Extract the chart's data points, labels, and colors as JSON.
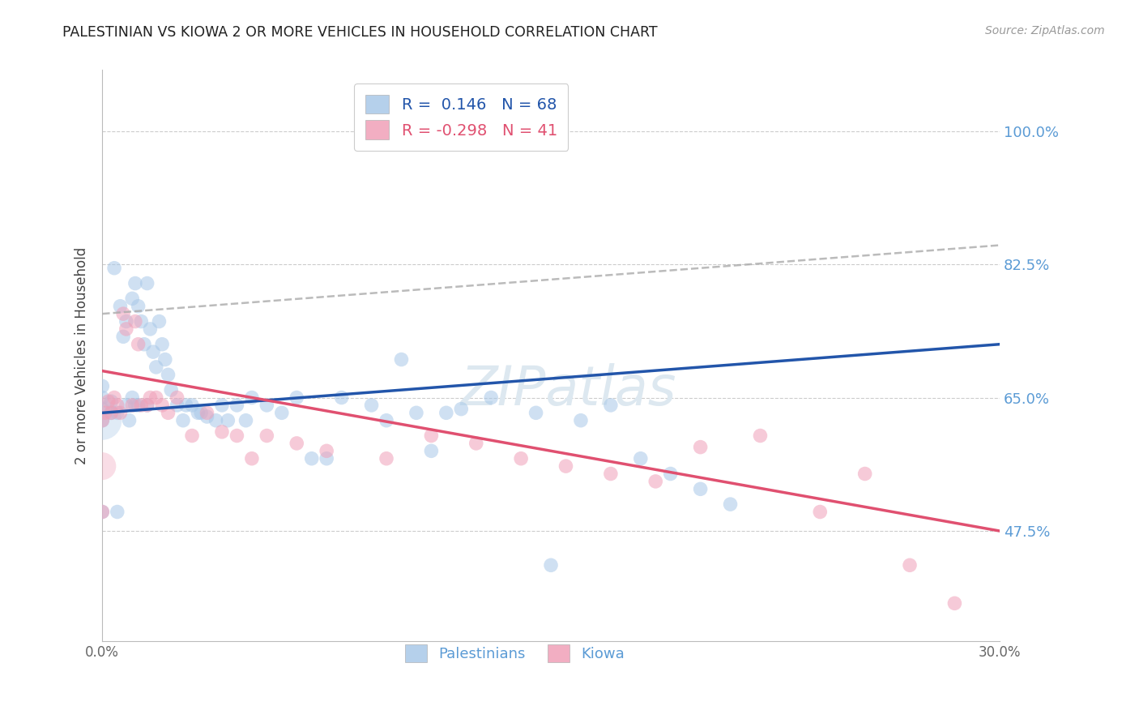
{
  "title": "PALESTINIAN VS KIOWA 2 OR MORE VEHICLES IN HOUSEHOLD CORRELATION CHART",
  "source": "Source: ZipAtlas.com",
  "ylabel": "2 or more Vehicles in Household",
  "yticks": [
    47.5,
    65.0,
    82.5,
    100.0
  ],
  "ytick_labels": [
    "47.5%",
    "65.0%",
    "82.5%",
    "100.0%"
  ],
  "xlim": [
    0.0,
    30.0
  ],
  "ylim": [
    33.0,
    108.0
  ],
  "pal_color": "#A8C8E8",
  "pal_line_color": "#2255AA",
  "kio_color": "#F0A0B8",
  "kio_line_color": "#E05070",
  "dash_color": "#AAAAAA",
  "watermark": "ZIPatlas",
  "pal_R": 0.146,
  "pal_N": 68,
  "kio_R": -0.298,
  "kio_N": 41,
  "pal_label": "Palestinians",
  "kio_label": "Kiowa",
  "background_color": "#FFFFFF",
  "grid_color": "#CCCCCC",
  "pal_x": [
    0.0,
    0.0,
    0.0,
    0.0,
    0.0,
    0.3,
    0.3,
    0.4,
    0.5,
    0.5,
    0.6,
    0.7,
    0.8,
    0.8,
    0.9,
    1.0,
    1.0,
    1.1,
    1.1,
    1.2,
    1.2,
    1.3,
    1.4,
    1.5,
    1.5,
    1.6,
    1.7,
    1.8,
    1.9,
    2.0,
    2.1,
    2.2,
    2.3,
    2.5,
    2.7,
    3.0,
    3.2,
    3.5,
    3.8,
    4.0,
    4.2,
    4.5,
    5.0,
    6.5,
    7.0,
    8.0,
    9.0,
    10.0,
    10.5,
    11.0,
    12.0,
    13.0,
    14.5,
    15.0,
    16.0,
    17.0,
    18.0,
    19.0,
    20.0,
    21.0,
    2.8,
    3.3,
    4.8,
    5.5,
    6.0,
    7.5,
    9.5,
    11.5
  ],
  "pal_y": [
    62.0,
    63.5,
    65.0,
    66.5,
    50.0,
    63.0,
    64.5,
    82.0,
    63.0,
    50.0,
    77.0,
    73.0,
    64.0,
    75.0,
    62.0,
    78.0,
    65.0,
    80.0,
    64.0,
    77.0,
    64.0,
    75.0,
    72.0,
    80.0,
    64.0,
    74.0,
    71.0,
    69.0,
    75.0,
    72.0,
    70.0,
    68.0,
    66.0,
    64.0,
    62.0,
    64.0,
    63.0,
    62.5,
    62.0,
    64.0,
    62.0,
    64.0,
    65.0,
    65.0,
    57.0,
    65.0,
    64.0,
    70.0,
    63.0,
    58.0,
    63.5,
    65.0,
    63.0,
    43.0,
    62.0,
    64.0,
    57.0,
    55.0,
    53.0,
    51.0,
    64.0,
    63.0,
    62.0,
    64.0,
    63.0,
    57.0,
    62.0,
    63.0
  ],
  "kio_x": [
    0.0,
    0.0,
    0.1,
    0.2,
    0.3,
    0.4,
    0.5,
    0.6,
    0.7,
    0.8,
    1.0,
    1.1,
    1.2,
    1.3,
    1.5,
    1.6,
    1.8,
    2.0,
    2.2,
    2.5,
    3.0,
    3.5,
    4.0,
    4.5,
    5.0,
    5.5,
    6.5,
    7.5,
    9.5,
    11.0,
    12.5,
    14.0,
    15.5,
    17.0,
    18.5,
    20.0,
    22.0,
    24.0,
    25.5,
    27.0,
    28.5
  ],
  "kio_y": [
    62.0,
    50.0,
    63.0,
    64.5,
    63.0,
    65.0,
    64.0,
    63.0,
    76.0,
    74.0,
    64.0,
    75.0,
    72.0,
    64.0,
    64.0,
    65.0,
    65.0,
    64.0,
    63.0,
    65.0,
    60.0,
    63.0,
    60.5,
    60.0,
    57.0,
    60.0,
    59.0,
    58.0,
    57.0,
    60.0,
    59.0,
    57.0,
    56.0,
    55.0,
    54.0,
    58.5,
    60.0,
    50.0,
    55.0,
    43.0,
    38.0
  ],
  "pal_line_x0": 0.0,
  "pal_line_x1": 30.0,
  "pal_line_y0": 63.0,
  "pal_line_y1": 72.0,
  "kio_line_x0": 0.0,
  "kio_line_x1": 30.0,
  "kio_line_y0": 68.5,
  "kio_line_y1": 47.5,
  "dash_line_x0": 0.0,
  "dash_line_x1": 30.0,
  "dash_line_y0": 76.0,
  "dash_line_y1": 85.0
}
